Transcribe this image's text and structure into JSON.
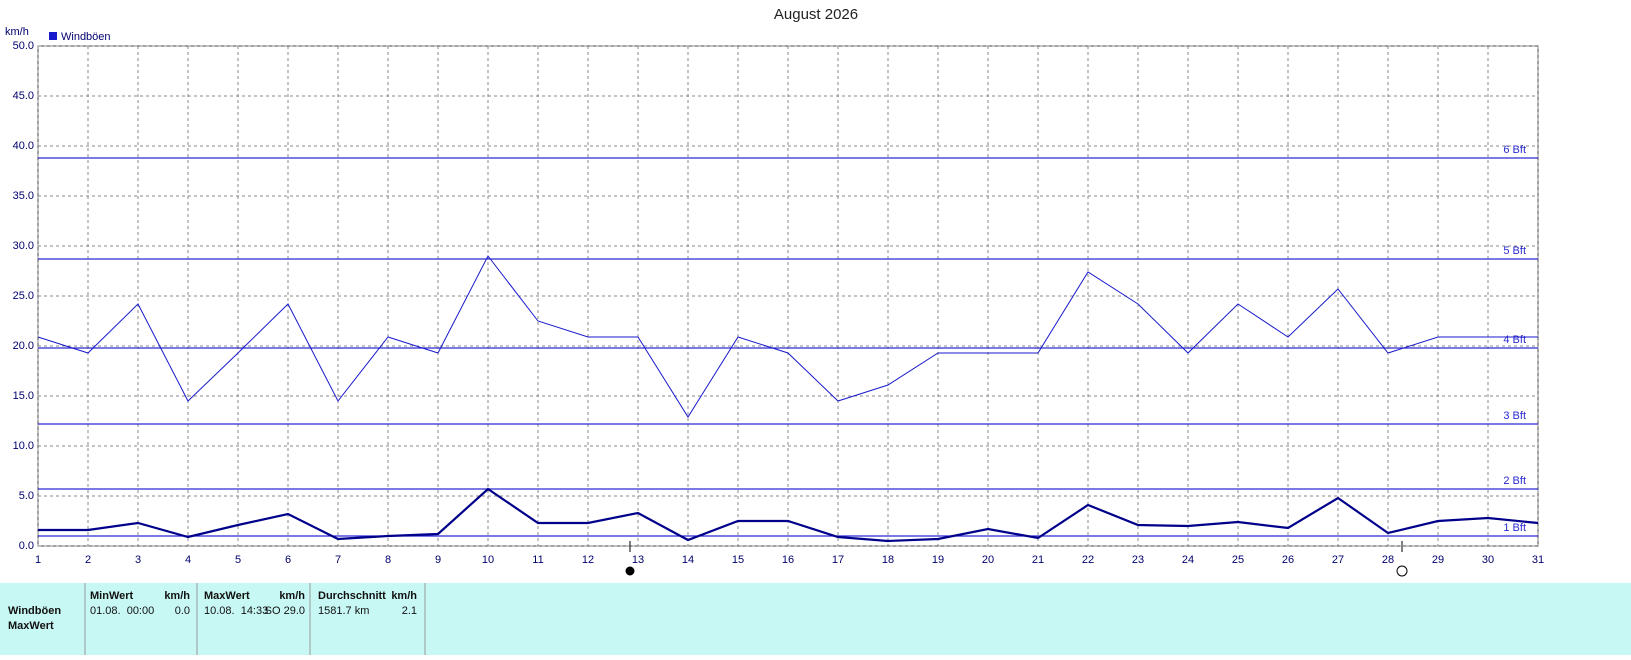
{
  "chart_data": {
    "type": "line",
    "title": "August 2026",
    "y_label": "km/h",
    "x": [
      1,
      2,
      3,
      4,
      5,
      6,
      7,
      8,
      9,
      10,
      11,
      12,
      13,
      14,
      15,
      16,
      17,
      18,
      19,
      20,
      21,
      22,
      23,
      24,
      25,
      26,
      27,
      28,
      29,
      30,
      31
    ],
    "xlim": [
      1,
      31
    ],
    "xticks": [
      1,
      2,
      3,
      4,
      5,
      6,
      7,
      8,
      9,
      10,
      11,
      12,
      13,
      14,
      15,
      16,
      17,
      18,
      19,
      20,
      21,
      22,
      23,
      24,
      25,
      26,
      27,
      28,
      29,
      30,
      31
    ],
    "ylim": [
      0,
      50
    ],
    "yticks": [
      {
        "value": 0,
        "label": "0.0"
      },
      {
        "value": 5,
        "label": "5.0"
      },
      {
        "value": 10,
        "label": "10.0"
      },
      {
        "value": 15,
        "label": "15.0"
      },
      {
        "value": 20,
        "label": "20.0"
      },
      {
        "value": 25,
        "label": "25.0"
      },
      {
        "value": 30,
        "label": "30.0"
      },
      {
        "value": 35,
        "label": "35.0"
      },
      {
        "value": 40,
        "label": "40.0"
      },
      {
        "value": 45,
        "label": "45.0"
      },
      {
        "value": 50,
        "label": "50.0"
      }
    ],
    "grid": true,
    "series": [
      {
        "name": "Windböen",
        "color": "#1a1acd",
        "values": [
          20.9,
          19.3,
          24.2,
          14.5,
          19.3,
          24.2,
          14.5,
          20.9,
          19.3,
          29.0,
          22.5,
          20.9,
          20.9,
          12.9,
          20.9,
          19.3,
          14.5,
          16.1,
          19.3,
          19.3,
          19.3,
          27.4,
          24.2,
          19.3,
          24.2,
          20.9,
          25.7,
          19.3,
          20.9,
          20.9,
          20.9
        ]
      },
      {
        "color": "#00008b",
        "values": [
          1.6,
          1.6,
          2.3,
          0.9,
          2.1,
          3.2,
          0.7,
          1.0,
          1.2,
          5.7,
          2.3,
          2.3,
          3.3,
          0.6,
          2.5,
          2.5,
          0.9,
          0.5,
          0.7,
          1.7,
          0.8,
          4.1,
          2.1,
          2.0,
          2.4,
          1.8,
          4.8,
          1.3,
          2.5,
          2.8,
          2.3
        ]
      }
    ],
    "reference_lines": [
      {
        "label": "6 Bft",
        "value": 38.8
      },
      {
        "label": "5 Bft",
        "value": 28.7
      },
      {
        "label": "4 Bft",
        "value": 19.8
      },
      {
        "label": "3 Bft",
        "value": 12.2
      },
      {
        "label": "2 Bft",
        "value": 5.7
      },
      {
        "label": "1 Bft",
        "value": 1.0
      }
    ],
    "reference_color": "#2a2ad0"
  },
  "table": {
    "headers": [
      [
        "MinWert",
        "km/h"
      ],
      [
        "MaxWert",
        "km/h"
      ],
      [
        "Durchschnitt",
        "km/h"
      ]
    ],
    "rows": [
      [
        "Windböen",
        "01.08.  00:00",
        "0.0",
        "10.08.  14:33",
        "SO 29.0",
        "1581.7 km",
        "2.1"
      ],
      [
        "MaxWert"
      ]
    ]
  }
}
